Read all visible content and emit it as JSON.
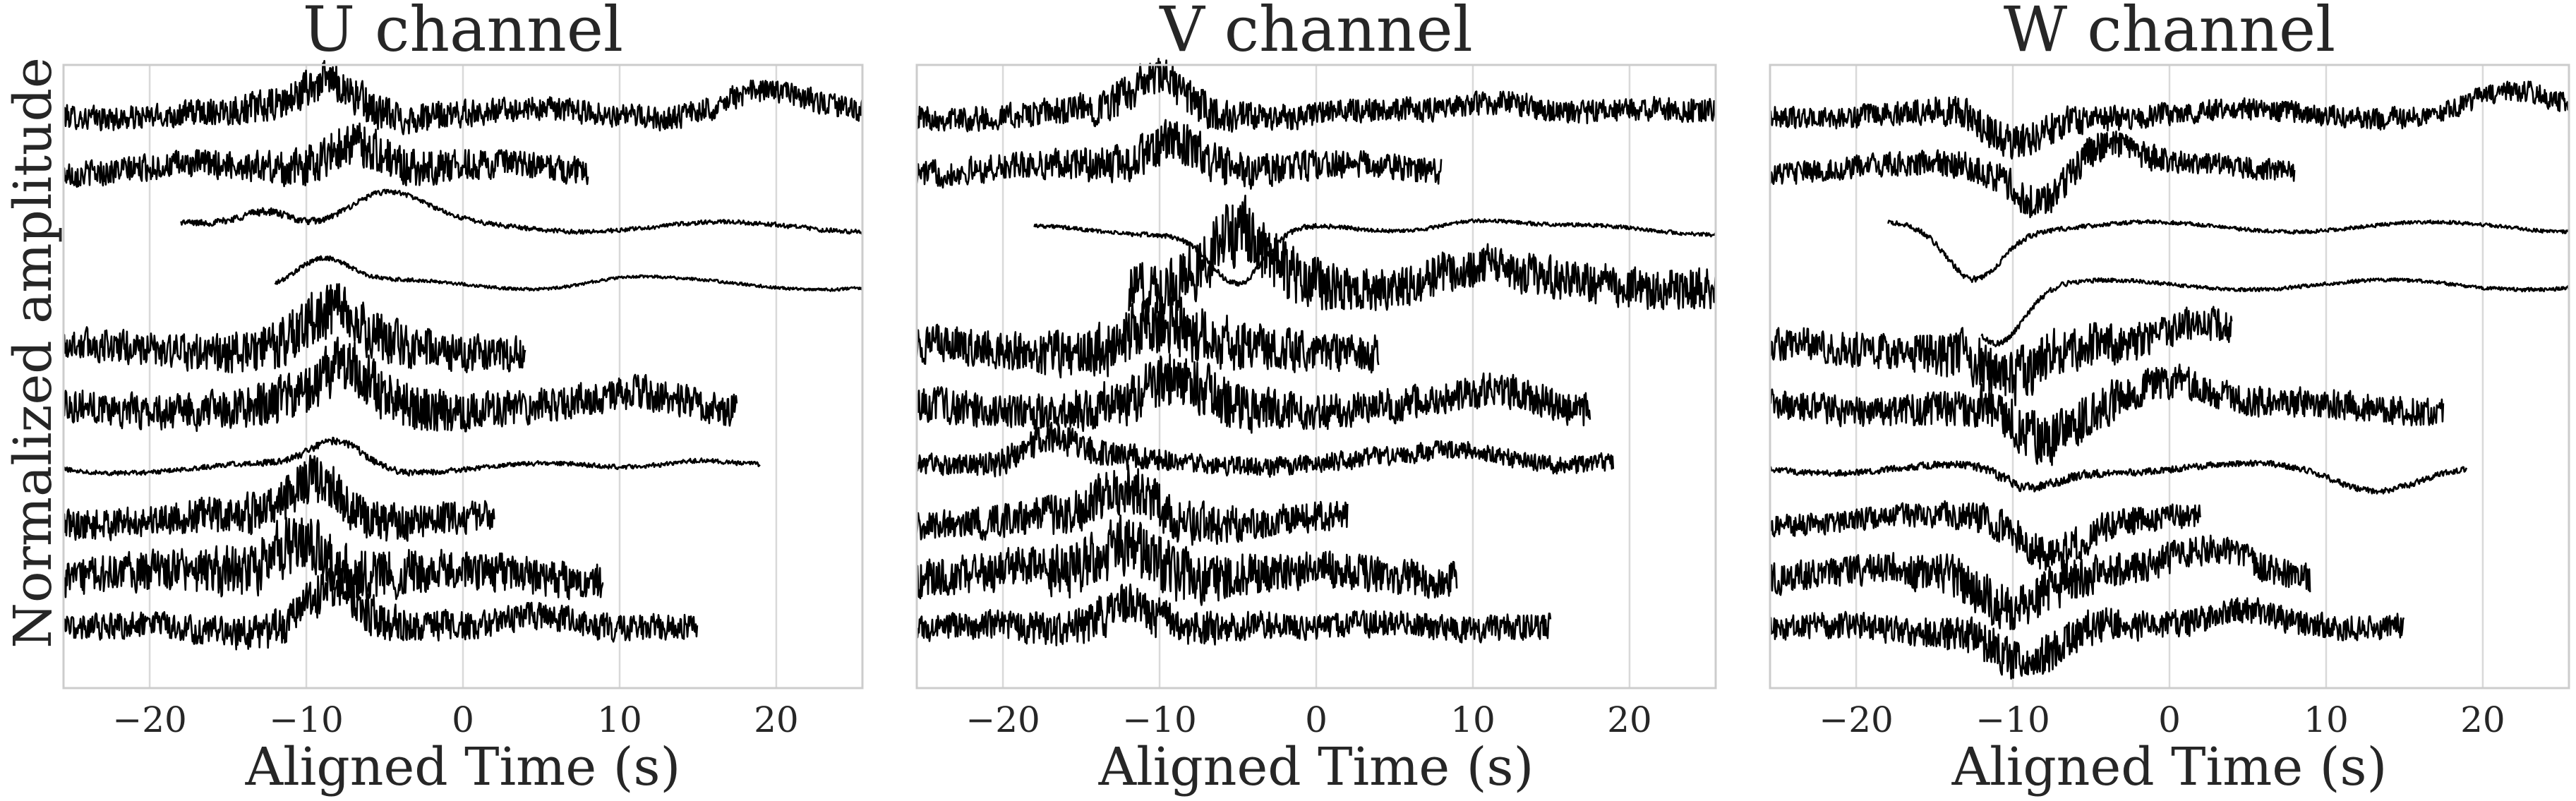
{
  "figure": {
    "ylabel": "Normalized amplitude"
  },
  "chart_data": [
    {
      "type": "line",
      "title": "U channel",
      "xlabel": "Aligned Time (s)",
      "ylabel": "Normalized amplitude",
      "xlim": [
        -25.5,
        25.5
      ],
      "xticks": [
        -20,
        -10,
        0,
        10,
        20
      ],
      "xtick_labels": [
        "−20",
        "−10",
        "0",
        "10",
        "20"
      ],
      "grid": true,
      "traces": [
        {
          "start": -25.5,
          "end": 25.5,
          "offset": 9.0,
          "noise": 0.32,
          "pulse_t": -8.5,
          "pulse_a": 0.55,
          "bump_t": 19,
          "bump_a": 0.35
        },
        {
          "start": -25.5,
          "end": 8.0,
          "offset": 8.1,
          "noise": 0.35,
          "pulse_t": -7.0,
          "pulse_a": 0.5,
          "bump_t": 0,
          "bump_a": 0
        },
        {
          "start": -18.0,
          "end": 25.5,
          "offset": 7.15,
          "noise": 0.06,
          "pulse_t": -12.5,
          "pulse_a": 0.3,
          "bump_t": -5,
          "bump_a": 0.55
        },
        {
          "start": -12.0,
          "end": 25.5,
          "offset": 6.2,
          "noise": 0.04,
          "pulse_t": -9.0,
          "pulse_a": 0.45,
          "bump_t": 10,
          "bump_a": 0.1
        },
        {
          "start": -25.5,
          "end": 4.0,
          "offset": 5.15,
          "noise": 0.45,
          "pulse_t": -8.5,
          "pulse_a": 0.55,
          "bump_t": 0,
          "bump_a": 0
        },
        {
          "start": -25.5,
          "end": 17.5,
          "offset": 4.2,
          "noise": 0.45,
          "pulse_t": -7.5,
          "pulse_a": 0.6,
          "bump_t": 12,
          "bump_a": 0.2
        },
        {
          "start": -25.5,
          "end": 19.0,
          "offset": 3.2,
          "noise": 0.06,
          "pulse_t": -8.0,
          "pulse_a": 0.45,
          "bump_t": 15,
          "bump_a": 0.2
        },
        {
          "start": -25.5,
          "end": 2.0,
          "offset": 2.35,
          "noise": 0.4,
          "pulse_t": -9.5,
          "pulse_a": 0.7,
          "bump_t": 0,
          "bump_a": 0
        },
        {
          "start": -25.5,
          "end": 9.0,
          "offset": 1.45,
          "noise": 0.5,
          "pulse_t": -10.5,
          "pulse_a": 0.6,
          "bump_t": 0,
          "bump_a": 0
        },
        {
          "start": -25.5,
          "end": 15.0,
          "offset": 0.55,
          "noise": 0.35,
          "pulse_t": -8.5,
          "pulse_a": 0.7,
          "bump_t": 5,
          "bump_a": 0.3
        }
      ]
    },
    {
      "type": "line",
      "title": "V channel",
      "xlabel": "Aligned Time (s)",
      "ylabel": "",
      "xlim": [
        -25.5,
        25.5
      ],
      "xticks": [
        -20,
        -10,
        0,
        10,
        20
      ],
      "xtick_labels": [
        "−20",
        "−10",
        "0",
        "10",
        "20"
      ],
      "grid": true,
      "traces": [
        {
          "start": -25.5,
          "end": 25.5,
          "offset": 9.0,
          "noise": 0.32,
          "pulse_t": -10.0,
          "pulse_a": 0.55,
          "bump_t": 12,
          "bump_a": 0.25
        },
        {
          "start": -25.5,
          "end": 8.0,
          "offset": 8.1,
          "noise": 0.35,
          "pulse_t": -9.0,
          "pulse_a": 0.5,
          "bump_t": 0,
          "bump_a": 0
        },
        {
          "start": -18.0,
          "end": 25.5,
          "offset": 7.1,
          "noise": 0.05,
          "pulse_t": -5.0,
          "pulse_a": -0.9,
          "bump_t": 10,
          "bump_a": 0.2
        },
        {
          "start": -12.0,
          "end": 25.5,
          "offset": 6.2,
          "noise": 0.55,
          "pulse_t": -5.0,
          "pulse_a": 0.8,
          "bump_t": 10,
          "bump_a": 0.3
        },
        {
          "start": -25.5,
          "end": 4.0,
          "offset": 5.15,
          "noise": 0.5,
          "pulse_t": -10.0,
          "pulse_a": 0.4,
          "bump_t": 0,
          "bump_a": 0
        },
        {
          "start": -25.5,
          "end": 17.5,
          "offset": 4.2,
          "noise": 0.45,
          "pulse_t": -9.0,
          "pulse_a": 0.4,
          "bump_t": 12,
          "bump_a": 0.25
        },
        {
          "start": -25.5,
          "end": 19.0,
          "offset": 3.3,
          "noise": 0.25,
          "pulse_t": -17.0,
          "pulse_a": 0.4,
          "bump_t": 10,
          "bump_a": 0.2
        },
        {
          "start": -25.5,
          "end": 2.0,
          "offset": 2.35,
          "noise": 0.4,
          "pulse_t": -12.0,
          "pulse_a": 0.5,
          "bump_t": 0,
          "bump_a": 0
        },
        {
          "start": -25.5,
          "end": 9.0,
          "offset": 1.45,
          "noise": 0.5,
          "pulse_t": -12.0,
          "pulse_a": 0.5,
          "bump_t": 0,
          "bump_a": 0
        },
        {
          "start": -25.5,
          "end": 15.0,
          "offset": 0.55,
          "noise": 0.35,
          "pulse_t": -12.0,
          "pulse_a": 0.5,
          "bump_t": 5,
          "bump_a": 0.2
        }
      ]
    },
    {
      "type": "line",
      "title": "W channel",
      "xlabel": "Aligned Time (s)",
      "ylabel": "",
      "xlim": [
        -25.5,
        25.5
      ],
      "xticks": [
        -20,
        -10,
        0,
        10,
        20
      ],
      "xtick_labels": [
        "−20",
        "−10",
        "0",
        "10",
        "20"
      ],
      "grid": true,
      "traces": [
        {
          "start": -25.5,
          "end": 25.5,
          "offset": 9.0,
          "noise": 0.28,
          "pulse_t": -10.0,
          "pulse_a": -0.5,
          "bump_t": 22,
          "bump_a": 0.3
        },
        {
          "start": -25.5,
          "end": 8.0,
          "offset": 8.1,
          "noise": 0.3,
          "pulse_t": -8.0,
          "pulse_a": -0.7,
          "bump_t": -5,
          "bump_a": 0.5
        },
        {
          "start": -18.0,
          "end": 25.5,
          "offset": 7.15,
          "noise": 0.05,
          "pulse_t": -12.5,
          "pulse_a": -0.8,
          "bump_t": 0,
          "bump_a": 0
        },
        {
          "start": -12.0,
          "end": 25.5,
          "offset": 6.2,
          "noise": 0.05,
          "pulse_t": -11.0,
          "pulse_a": -0.9,
          "bump_t": 0,
          "bump_a": 0
        },
        {
          "start": -25.5,
          "end": 4.0,
          "offset": 5.15,
          "noise": 0.45,
          "pulse_t": -10.0,
          "pulse_a": -0.5,
          "bump_t": 2,
          "bump_a": 0.5
        },
        {
          "start": -25.5,
          "end": 17.5,
          "offset": 4.2,
          "noise": 0.4,
          "pulse_t": -8.0,
          "pulse_a": -0.6,
          "bump_t": 0,
          "bump_a": 0.5
        },
        {
          "start": -25.5,
          "end": 19.0,
          "offset": 3.2,
          "noise": 0.08,
          "pulse_t": -9.0,
          "pulse_a": -0.35,
          "bump_t": 13,
          "bump_a": -0.3
        },
        {
          "start": -25.5,
          "end": 2.0,
          "offset": 2.35,
          "noise": 0.3,
          "pulse_t": -7.5,
          "pulse_a": -0.5,
          "bump_t": 0,
          "bump_a": 0
        },
        {
          "start": -25.5,
          "end": 9.0,
          "offset": 1.45,
          "noise": 0.4,
          "pulse_t": -10.0,
          "pulse_a": -0.5,
          "bump_t": 3,
          "bump_a": 0.4
        },
        {
          "start": -25.5,
          "end": 15.0,
          "offset": 0.55,
          "noise": 0.35,
          "pulse_t": -9.0,
          "pulse_a": -0.5,
          "bump_t": 5,
          "bump_a": 0.4
        }
      ]
    }
  ]
}
